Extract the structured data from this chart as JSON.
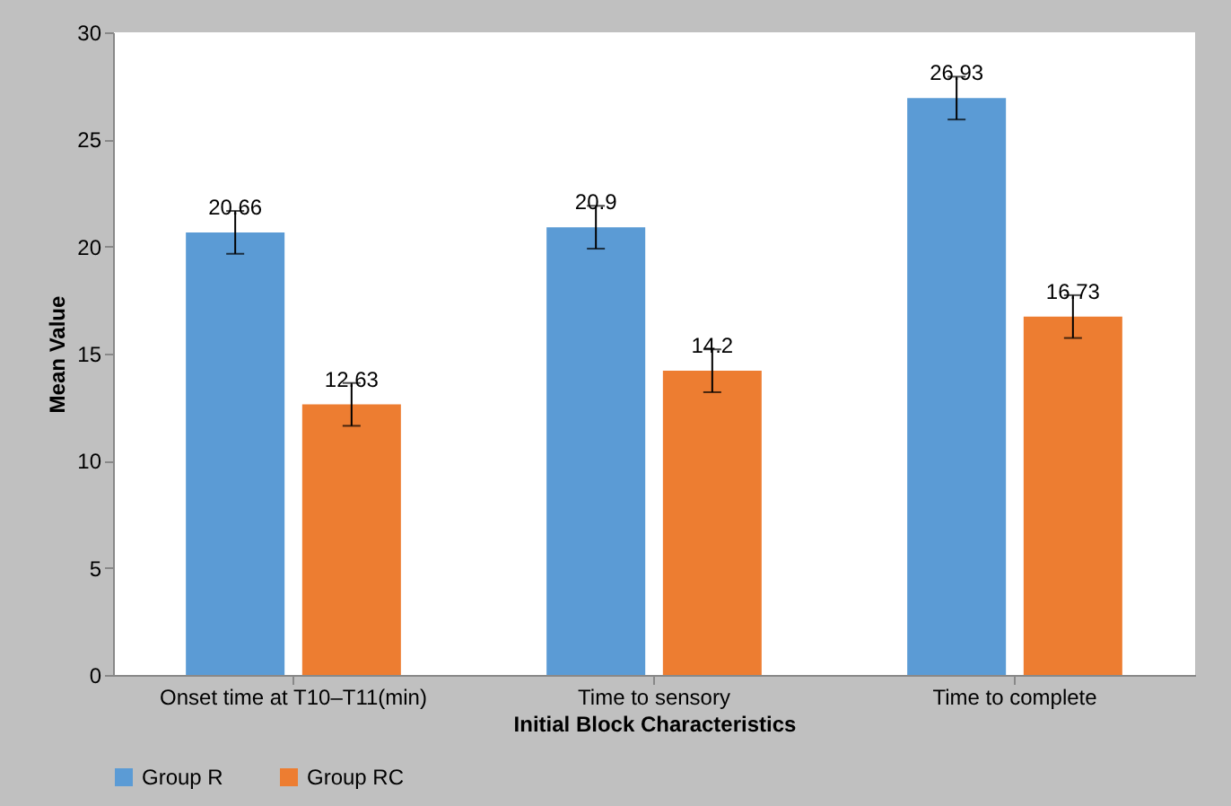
{
  "chart_data": {
    "type": "bar",
    "xlabel": "Initial Block Characteristics",
    "ylabel": "Mean Value",
    "categories": [
      "Onset time at T10–T11(min)",
      "Time to sensory",
      "Time to complete"
    ],
    "series": [
      {
        "name": "Group R",
        "color": "#5b9bd5",
        "values": [
          20.66,
          20.9,
          26.93
        ],
        "errors": [
          1,
          1,
          1
        ]
      },
      {
        "name": "Group RC",
        "color": "#ed7d31",
        "values": [
          12.63,
          14.2,
          16.73
        ],
        "errors": [
          1,
          1,
          1
        ]
      }
    ],
    "ylim": [
      0,
      30
    ],
    "yticks": [
      0,
      5,
      10,
      15,
      20,
      25,
      30
    ],
    "data_labels": true,
    "legend": "bottom",
    "grid": false
  }
}
